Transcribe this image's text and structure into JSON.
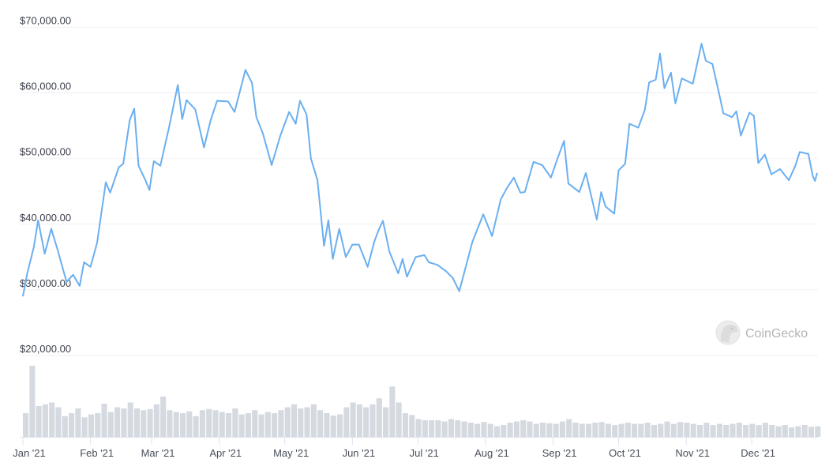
{
  "chart_data": {
    "type": "line",
    "title": "",
    "xlabel": "",
    "ylabel": "",
    "ylim": [
      20000,
      70000
    ],
    "y_ticks": [
      "$20,000.00",
      "$30,000.00",
      "$40,000.00",
      "$50,000.00",
      "$60,000.00",
      "$70,000.00"
    ],
    "y_tick_values": [
      20000,
      30000,
      40000,
      50000,
      60000,
      70000
    ],
    "x_ticks": [
      "Jan '21",
      "Feb '21",
      "Mar '21",
      "Apr '21",
      "May '21",
      "Jun '21",
      "Jul '21",
      "Aug '21",
      "Sep '21",
      "Oct '21",
      "Nov '21",
      "Dec '21"
    ],
    "x_tick_dates": [
      "2021-01-01",
      "2021-02-01",
      "2021-03-01",
      "2021-04-01",
      "2021-05-01",
      "2021-06-01",
      "2021-07-01",
      "2021-08-01",
      "2021-09-01",
      "2021-10-01",
      "2021-11-01",
      "2021-12-01"
    ],
    "xlim": [
      "2021-01-01",
      "2021-12-31"
    ],
    "grid": "horizontal",
    "line_color": "#6aaff0",
    "volume_color": "#d5d9e0",
    "series": [
      {
        "points": [
          [
            "2021-01-01",
            29000
          ],
          [
            "2021-01-03",
            32500
          ],
          [
            "2021-01-06",
            36500
          ],
          [
            "2021-01-08",
            40600
          ],
          [
            "2021-01-11",
            35500
          ],
          [
            "2021-01-14",
            39300
          ],
          [
            "2021-01-17",
            36000
          ],
          [
            "2021-01-21",
            31200
          ],
          [
            "2021-01-24",
            32300
          ],
          [
            "2021-01-27",
            30600
          ],
          [
            "2021-01-29",
            34200
          ],
          [
            "2021-02-01",
            33500
          ],
          [
            "2021-02-04",
            37200
          ],
          [
            "2021-02-08",
            46400
          ],
          [
            "2021-02-10",
            44800
          ],
          [
            "2021-02-14",
            48700
          ],
          [
            "2021-02-16",
            49200
          ],
          [
            "2021-02-19",
            55900
          ],
          [
            "2021-02-21",
            57600
          ],
          [
            "2021-02-23",
            48900
          ],
          [
            "2021-02-26",
            46800
          ],
          [
            "2021-02-28",
            45200
          ],
          [
            "2021-03-02",
            49600
          ],
          [
            "2021-03-05",
            48900
          ],
          [
            "2021-03-09",
            54800
          ],
          [
            "2021-03-13",
            61200
          ],
          [
            "2021-03-15",
            56000
          ],
          [
            "2021-03-17",
            58900
          ],
          [
            "2021-03-21",
            57500
          ],
          [
            "2021-03-25",
            51700
          ],
          [
            "2021-03-28",
            55800
          ],
          [
            "2021-03-31",
            58800
          ],
          [
            "2021-04-05",
            58700
          ],
          [
            "2021-04-08",
            57100
          ],
          [
            "2021-04-13",
            63500
          ],
          [
            "2021-04-16",
            61500
          ],
          [
            "2021-04-18",
            56300
          ],
          [
            "2021-04-21",
            53800
          ],
          [
            "2021-04-25",
            49000
          ],
          [
            "2021-04-29",
            53500
          ],
          [
            "2021-05-03",
            57100
          ],
          [
            "2021-05-06",
            55300
          ],
          [
            "2021-05-08",
            58800
          ],
          [
            "2021-05-11",
            56700
          ],
          [
            "2021-05-13",
            50000
          ],
          [
            "2021-05-16",
            46700
          ],
          [
            "2021-05-19",
            36700
          ],
          [
            "2021-05-21",
            40600
          ],
          [
            "2021-05-23",
            34700
          ],
          [
            "2021-05-26",
            39300
          ],
          [
            "2021-05-29",
            35000
          ],
          [
            "2021-06-01",
            36900
          ],
          [
            "2021-06-04",
            36900
          ],
          [
            "2021-06-08",
            33500
          ],
          [
            "2021-06-11",
            37300
          ],
          [
            "2021-06-13",
            39100
          ],
          [
            "2021-06-15",
            40500
          ],
          [
            "2021-06-18",
            35800
          ],
          [
            "2021-06-22",
            32500
          ],
          [
            "2021-06-24",
            34700
          ],
          [
            "2021-06-26",
            32000
          ],
          [
            "2021-06-30",
            35000
          ],
          [
            "2021-07-04",
            35300
          ],
          [
            "2021-07-06",
            34200
          ],
          [
            "2021-07-10",
            33800
          ],
          [
            "2021-07-14",
            32800
          ],
          [
            "2021-07-17",
            31800
          ],
          [
            "2021-07-20",
            29800
          ],
          [
            "2021-07-22",
            32300
          ],
          [
            "2021-07-26",
            37300
          ],
          [
            "2021-07-31",
            41500
          ],
          [
            "2021-08-04",
            38200
          ],
          [
            "2021-08-08",
            43800
          ],
          [
            "2021-08-11",
            45600
          ],
          [
            "2021-08-14",
            47100
          ],
          [
            "2021-08-17",
            44800
          ],
          [
            "2021-08-19",
            44900
          ],
          [
            "2021-08-23",
            49500
          ],
          [
            "2021-08-27",
            49000
          ],
          [
            "2021-08-31",
            47100
          ],
          [
            "2021-09-03",
            50000
          ],
          [
            "2021-09-06",
            52700
          ],
          [
            "2021-09-08",
            46200
          ],
          [
            "2021-09-13",
            44900
          ],
          [
            "2021-09-16",
            47800
          ],
          [
            "2021-09-21",
            40700
          ],
          [
            "2021-09-23",
            44900
          ],
          [
            "2021-09-25",
            42700
          ],
          [
            "2021-09-29",
            41600
          ],
          [
            "2021-10-01",
            48200
          ],
          [
            "2021-10-04",
            49200
          ],
          [
            "2021-10-06",
            55300
          ],
          [
            "2021-10-10",
            54700
          ],
          [
            "2021-10-13",
            57400
          ],
          [
            "2021-10-15",
            61600
          ],
          [
            "2021-10-18",
            62000
          ],
          [
            "2021-10-20",
            66000
          ],
          [
            "2021-10-22",
            60700
          ],
          [
            "2021-10-25",
            63100
          ],
          [
            "2021-10-27",
            58400
          ],
          [
            "2021-10-30",
            62200
          ],
          [
            "2021-11-04",
            61400
          ],
          [
            "2021-11-08",
            67500
          ],
          [
            "2021-11-10",
            64900
          ],
          [
            "2021-11-13",
            64400
          ],
          [
            "2021-11-16",
            60000
          ],
          [
            "2021-11-18",
            56900
          ],
          [
            "2021-11-22",
            56300
          ],
          [
            "2021-11-24",
            57200
          ],
          [
            "2021-11-26",
            53500
          ],
          [
            "2021-11-30",
            57000
          ],
          [
            "2021-12-02",
            56500
          ],
          [
            "2021-12-04",
            49300
          ],
          [
            "2021-12-07",
            50600
          ],
          [
            "2021-12-10",
            47600
          ],
          [
            "2021-12-14",
            48400
          ],
          [
            "2021-12-18",
            46700
          ],
          [
            "2021-12-21",
            48900
          ],
          [
            "2021-12-23",
            51000
          ],
          [
            "2021-12-27",
            50700
          ],
          [
            "2021-12-29",
            47300
          ],
          [
            "2021-12-30",
            46600
          ],
          [
            "2021-12-31",
            47800
          ]
        ]
      }
    ],
    "volume": {
      "start": "2021-01-01",
      "step_days": 3,
      "values": [
        40,
        120,
        52,
        55,
        58,
        50,
        35,
        40,
        48,
        33,
        38,
        40,
        56,
        42,
        50,
        48,
        58,
        48,
        45,
        47,
        55,
        68,
        45,
        42,
        40,
        43,
        35,
        45,
        47,
        45,
        42,
        40,
        48,
        38,
        40,
        45,
        38,
        42,
        40,
        45,
        50,
        55,
        48,
        50,
        55,
        45,
        40,
        36,
        38,
        50,
        58,
        55,
        50,
        55,
        65,
        50,
        85,
        58,
        40,
        37,
        30,
        28,
        28,
        28,
        26,
        30,
        28,
        26,
        24,
        22,
        25,
        22,
        18,
        20,
        24,
        26,
        28,
        26,
        22,
        24,
        23,
        22,
        26,
        30,
        24,
        22,
        22,
        24,
        25,
        22,
        20,
        22,
        24,
        22,
        22,
        24,
        20,
        22,
        26,
        22,
        25,
        24,
        22,
        20,
        24,
        20,
        22,
        20,
        22,
        24,
        20,
        22,
        20,
        24,
        20,
        18,
        20,
        16,
        18,
        20,
        17,
        18
      ]
    }
  },
  "watermark": {
    "text": "CoinGecko"
  }
}
